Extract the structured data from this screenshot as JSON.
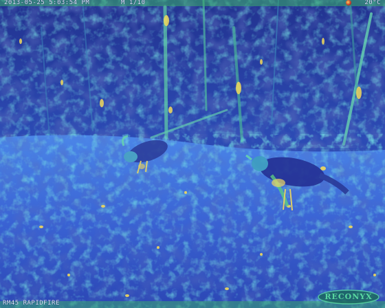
{
  "overlay": {
    "timestamp": "2013-05-25 5:03:54 PM",
    "mode": "M 1/10",
    "temperature": "20°C",
    "camera_model": "RM45 RAPIDFIRE",
    "brand": "RECONYX"
  },
  "scene": {
    "description_icon": "wildlife-camera-photo",
    "palette": {
      "deep": "#1c2590",
      "mid": "#2f56c8",
      "cyan": "#39c9c4",
      "green": "#5fd57a",
      "yellow": "#f1d95c",
      "ground": "#3d6fe0"
    }
  }
}
